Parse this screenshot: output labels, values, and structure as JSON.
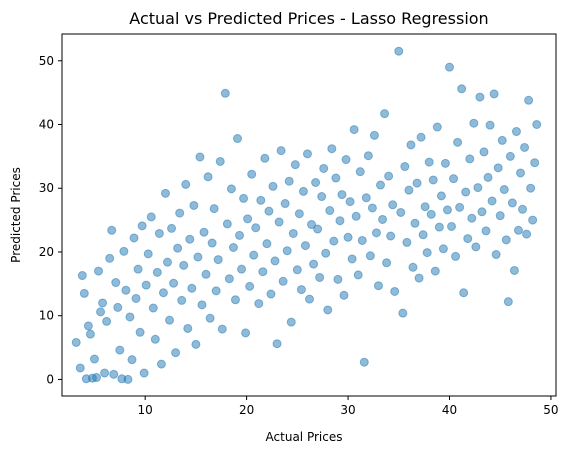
{
  "chart_data": {
    "type": "scatter",
    "title": "Actual vs Predicted Prices - Lasso Regression",
    "xlabel": "Actual Prices",
    "ylabel": "Predicted Prices",
    "xlim": [
      1.8,
      50.5
    ],
    "ylim": [
      -2.6,
      54.2
    ],
    "x_ticks": [
      10,
      20,
      30,
      40,
      50
    ],
    "y_ticks": [
      0,
      10,
      20,
      30,
      40,
      50
    ],
    "grid": false,
    "legend": "none",
    "marker_color": "#1f77b4",
    "marker_alpha": 0.5,
    "series": [
      {
        "points": [
          [
            3.2,
            5.8
          ],
          [
            3.6,
            1.8
          ],
          [
            3.8,
            16.3
          ],
          [
            4.0,
            13.5
          ],
          [
            4.2,
            0.1
          ],
          [
            4.4,
            8.4
          ],
          [
            4.6,
            7.1
          ],
          [
            4.8,
            0.2
          ],
          [
            5.0,
            3.2
          ],
          [
            5.2,
            0.3
          ],
          [
            5.4,
            17.0
          ],
          [
            5.6,
            10.6
          ],
          [
            5.8,
            12.0
          ],
          [
            6.0,
            1.0
          ],
          [
            6.2,
            9.1
          ],
          [
            6.5,
            19.0
          ],
          [
            6.7,
            23.4
          ],
          [
            6.9,
            0.8
          ],
          [
            7.1,
            15.2
          ],
          [
            7.3,
            11.3
          ],
          [
            7.5,
            4.6
          ],
          [
            7.7,
            0.1
          ],
          [
            7.9,
            20.1
          ],
          [
            8.1,
            14.0
          ],
          [
            8.3,
            0.0
          ],
          [
            8.5,
            9.8
          ],
          [
            8.7,
            3.1
          ],
          [
            8.9,
            22.2
          ],
          [
            9.1,
            12.7
          ],
          [
            9.3,
            17.3
          ],
          [
            9.5,
            7.4
          ],
          [
            9.7,
            24.1
          ],
          [
            9.9,
            1.0
          ],
          [
            10.1,
            14.8
          ],
          [
            10.3,
            19.7
          ],
          [
            10.6,
            25.5
          ],
          [
            10.8,
            11.2
          ],
          [
            11.0,
            6.3
          ],
          [
            11.2,
            16.8
          ],
          [
            11.4,
            22.9
          ],
          [
            11.6,
            2.4
          ],
          [
            11.8,
            13.6
          ],
          [
            12.0,
            29.2
          ],
          [
            12.2,
            18.4
          ],
          [
            12.4,
            9.3
          ],
          [
            12.6,
            23.7
          ],
          [
            12.8,
            15.1
          ],
          [
            13.0,
            4.2
          ],
          [
            13.2,
            20.6
          ],
          [
            13.4,
            26.1
          ],
          [
            13.6,
            12.4
          ],
          [
            13.8,
            17.9
          ],
          [
            14.0,
            30.6
          ],
          [
            14.2,
            8.0
          ],
          [
            14.4,
            22.0
          ],
          [
            14.6,
            14.3
          ],
          [
            14.8,
            27.3
          ],
          [
            15.0,
            5.5
          ],
          [
            15.2,
            19.2
          ],
          [
            15.4,
            34.9
          ],
          [
            15.6,
            11.7
          ],
          [
            15.8,
            23.1
          ],
          [
            16.0,
            16.5
          ],
          [
            16.2,
            31.8
          ],
          [
            16.4,
            9.6
          ],
          [
            16.6,
            21.4
          ],
          [
            16.8,
            26.8
          ],
          [
            17.0,
            13.9
          ],
          [
            17.2,
            18.8
          ],
          [
            17.4,
            34.2
          ],
          [
            17.6,
            7.9
          ],
          [
            17.9,
            44.9
          ],
          [
            18.1,
            24.4
          ],
          [
            18.3,
            15.8
          ],
          [
            18.5,
            29.9
          ],
          [
            18.7,
            20.7
          ],
          [
            18.9,
            12.5
          ],
          [
            19.1,
            37.8
          ],
          [
            19.3,
            22.6
          ],
          [
            19.5,
            17.3
          ],
          [
            19.7,
            28.4
          ],
          [
            19.9,
            7.3
          ],
          [
            20.1,
            25.2
          ],
          [
            20.3,
            14.6
          ],
          [
            20.5,
            32.2
          ],
          [
            20.7,
            19.5
          ],
          [
            20.9,
            23.8
          ],
          [
            21.2,
            11.9
          ],
          [
            21.4,
            28.1
          ],
          [
            21.6,
            16.9
          ],
          [
            21.8,
            34.7
          ],
          [
            22.0,
            21.3
          ],
          [
            22.2,
            26.4
          ],
          [
            22.4,
            13.4
          ],
          [
            22.6,
            30.3
          ],
          [
            22.8,
            18.6
          ],
          [
            23.0,
            5.6
          ],
          [
            23.2,
            24.7
          ],
          [
            23.4,
            35.9
          ],
          [
            23.6,
            15.4
          ],
          [
            23.8,
            27.6
          ],
          [
            24.0,
            20.2
          ],
          [
            24.2,
            31.1
          ],
          [
            24.4,
            9.0
          ],
          [
            24.6,
            22.9
          ],
          [
            24.8,
            33.7
          ],
          [
            25.0,
            17.2
          ],
          [
            25.2,
            26.0
          ],
          [
            25.4,
            14.1
          ],
          [
            25.6,
            29.5
          ],
          [
            25.8,
            21.0
          ],
          [
            26.0,
            35.4
          ],
          [
            26.2,
            12.6
          ],
          [
            26.4,
            24.3
          ],
          [
            26.6,
            18.1
          ],
          [
            26.8,
            30.9
          ],
          [
            27.0,
            23.6
          ],
          [
            27.2,
            16.0
          ],
          [
            27.4,
            28.7
          ],
          [
            27.6,
            33.1
          ],
          [
            27.8,
            19.8
          ],
          [
            28.0,
            10.9
          ],
          [
            28.2,
            26.5
          ],
          [
            28.4,
            36.2
          ],
          [
            28.6,
            21.7
          ],
          [
            28.8,
            31.6
          ],
          [
            29.0,
            15.7
          ],
          [
            29.2,
            24.9
          ],
          [
            29.4,
            29.0
          ],
          [
            29.6,
            13.2
          ],
          [
            29.8,
            34.5
          ],
          [
            30.0,
            22.3
          ],
          [
            30.2,
            27.9
          ],
          [
            30.4,
            18.9
          ],
          [
            30.6,
            39.2
          ],
          [
            30.8,
            25.6
          ],
          [
            31.0,
            16.4
          ],
          [
            31.2,
            32.6
          ],
          [
            31.4,
            21.8
          ],
          [
            31.6,
            2.7
          ],
          [
            31.8,
            28.5
          ],
          [
            32.0,
            35.1
          ],
          [
            32.2,
            19.4
          ],
          [
            32.4,
            26.9
          ],
          [
            32.6,
            38.3
          ],
          [
            32.8,
            23.0
          ],
          [
            33.0,
            14.7
          ],
          [
            33.2,
            30.5
          ],
          [
            33.4,
            25.1
          ],
          [
            33.6,
            41.7
          ],
          [
            33.8,
            18.3
          ],
          [
            34.0,
            31.9
          ],
          [
            34.2,
            22.5
          ],
          [
            34.4,
            27.4
          ],
          [
            34.6,
            13.8
          ],
          [
            35.0,
            51.5
          ],
          [
            35.2,
            26.2
          ],
          [
            35.4,
            10.4
          ],
          [
            35.6,
            33.4
          ],
          [
            35.8,
            21.5
          ],
          [
            36.0,
            29.7
          ],
          [
            36.2,
            36.8
          ],
          [
            36.4,
            17.6
          ],
          [
            36.6,
            24.5
          ],
          [
            36.8,
            30.8
          ],
          [
            37.0,
            15.9
          ],
          [
            37.2,
            38.0
          ],
          [
            37.4,
            22.7
          ],
          [
            37.6,
            27.1
          ],
          [
            37.8,
            19.9
          ],
          [
            38.0,
            34.1
          ],
          [
            38.2,
            25.9
          ],
          [
            38.4,
            31.3
          ],
          [
            38.6,
            17.0
          ],
          [
            38.8,
            39.6
          ],
          [
            39.0,
            23.9
          ],
          [
            39.2,
            28.8
          ],
          [
            39.4,
            20.5
          ],
          [
            39.6,
            33.9
          ],
          [
            39.8,
            26.6
          ],
          [
            40.0,
            49.0
          ],
          [
            40.2,
            24.0
          ],
          [
            40.4,
            31.5
          ],
          [
            40.6,
            19.3
          ],
          [
            40.8,
            37.2
          ],
          [
            41.0,
            27.0
          ],
          [
            41.2,
            45.6
          ],
          [
            41.4,
            13.6
          ],
          [
            41.6,
            29.4
          ],
          [
            41.8,
            22.1
          ],
          [
            42.0,
            34.6
          ],
          [
            42.2,
            25.3
          ],
          [
            42.4,
            40.2
          ],
          [
            42.6,
            20.8
          ],
          [
            42.8,
            30.1
          ],
          [
            43.0,
            44.3
          ],
          [
            43.2,
            26.3
          ],
          [
            43.4,
            35.7
          ],
          [
            43.6,
            23.3
          ],
          [
            43.8,
            31.7
          ],
          [
            44.0,
            39.9
          ],
          [
            44.2,
            28.0
          ],
          [
            44.4,
            44.8
          ],
          [
            44.6,
            19.6
          ],
          [
            44.8,
            33.2
          ],
          [
            45.0,
            25.7
          ],
          [
            45.2,
            37.5
          ],
          [
            45.4,
            29.8
          ],
          [
            45.6,
            21.9
          ],
          [
            45.8,
            12.2
          ],
          [
            46.0,
            35.0
          ],
          [
            46.2,
            27.7
          ],
          [
            46.4,
            17.1
          ],
          [
            46.6,
            38.9
          ],
          [
            46.8,
            23.4
          ],
          [
            47.0,
            32.4
          ],
          [
            47.2,
            26.7
          ],
          [
            47.4,
            36.4
          ],
          [
            47.6,
            22.8
          ],
          [
            47.8,
            43.8
          ],
          [
            48.0,
            30.0
          ],
          [
            48.2,
            25.0
          ],
          [
            48.4,
            34.0
          ],
          [
            48.6,
            40.0
          ]
        ]
      }
    ]
  }
}
